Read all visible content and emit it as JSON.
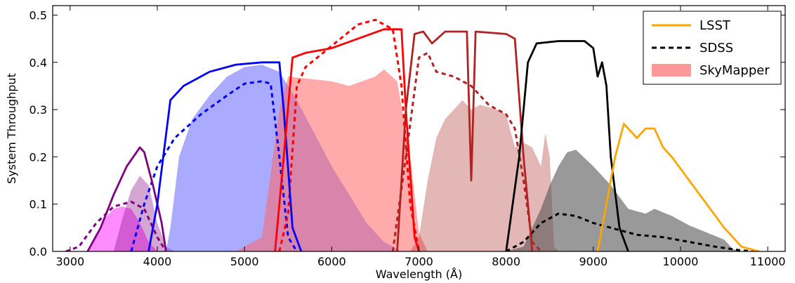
{
  "chart_data": {
    "type": "area",
    "title": "",
    "xlabel": "Wavelength (Å)",
    "ylabel": "System Throughput",
    "xlim": [
      2800,
      11200
    ],
    "ylim": [
      0.0,
      0.52
    ],
    "x_ticks": [
      "3000",
      "4000",
      "5000",
      "6000",
      "7000",
      "8000",
      "9000",
      "10000",
      "11000"
    ],
    "y_ticks": [
      "0.0",
      "0.1",
      "0.2",
      "0.3",
      "0.4",
      "0.5"
    ],
    "grid": false,
    "legend_position": "top-right",
    "legend": [
      {
        "label": "LSST",
        "style": "solid-line",
        "color": "#ffa500"
      },
      {
        "label": "SDSS",
        "style": "dashed-line",
        "color": "#000000"
      },
      {
        "label": "SkyMapper",
        "style": "filled-area",
        "color": "#ff9999"
      }
    ],
    "series": [
      {
        "survey": "SkyMapper",
        "kind": "area",
        "color": "#ff00ff",
        "opacity": 0.45,
        "points": [
          [
            3200,
            0
          ],
          [
            3300,
            0.03
          ],
          [
            3400,
            0.07
          ],
          [
            3500,
            0.09
          ],
          [
            3600,
            0.095
          ],
          [
            3700,
            0.09
          ],
          [
            3800,
            0.06
          ],
          [
            3900,
            0.02
          ],
          [
            4000,
            0
          ]
        ]
      },
      {
        "survey": "SkyMapper",
        "kind": "area",
        "color": "#800080",
        "opacity": 0.35,
        "points": [
          [
            3500,
            0
          ],
          [
            3600,
            0.07
          ],
          [
            3700,
            0.13
          ],
          [
            3800,
            0.16
          ],
          [
            3900,
            0.14
          ],
          [
            4000,
            0.06
          ],
          [
            4100,
            0.01
          ],
          [
            4200,
            0
          ]
        ]
      },
      {
        "survey": "SkyMapper",
        "kind": "area",
        "color": "#5555ff",
        "opacity": 0.5,
        "points": [
          [
            4100,
            0
          ],
          [
            4150,
            0.05
          ],
          [
            4250,
            0.2
          ],
          [
            4400,
            0.28
          ],
          [
            4600,
            0.33
          ],
          [
            4800,
            0.37
          ],
          [
            5000,
            0.39
          ],
          [
            5200,
            0.395
          ],
          [
            5400,
            0.38
          ],
          [
            5600,
            0.32
          ],
          [
            5800,
            0.25
          ],
          [
            6000,
            0.18
          ],
          [
            6200,
            0.12
          ],
          [
            6400,
            0.06
          ],
          [
            6600,
            0.02
          ],
          [
            6800,
            0
          ]
        ]
      },
      {
        "survey": "SkyMapper",
        "kind": "area",
        "color": "#ff6666",
        "opacity": 0.55,
        "points": [
          [
            4900,
            0
          ],
          [
            5200,
            0.03
          ],
          [
            5400,
            0.3
          ],
          [
            5500,
            0.37
          ],
          [
            6000,
            0.36
          ],
          [
            6200,
            0.35
          ],
          [
            6500,
            0.37
          ],
          [
            6600,
            0.385
          ],
          [
            6750,
            0.36
          ],
          [
            6900,
            0.2
          ],
          [
            7000,
            0.04
          ],
          [
            7100,
            0
          ]
        ]
      },
      {
        "survey": "SkyMapper",
        "kind": "area",
        "color": "#b23030",
        "opacity": 0.35,
        "points": [
          [
            6900,
            0
          ],
          [
            7000,
            0.03
          ],
          [
            7100,
            0.15
          ],
          [
            7200,
            0.24
          ],
          [
            7300,
            0.28
          ],
          [
            7400,
            0.3
          ],
          [
            7500,
            0.32
          ],
          [
            7600,
            0.3
          ],
          [
            7700,
            0.31
          ],
          [
            7900,
            0.3
          ],
          [
            8000,
            0.29
          ],
          [
            8100,
            0.22
          ],
          [
            8200,
            0.23
          ],
          [
            8300,
            0.22
          ],
          [
            8400,
            0.18
          ],
          [
            8450,
            0.25
          ],
          [
            8500,
            0.2
          ],
          [
            8550,
            0.01
          ],
          [
            8600,
            0
          ]
        ]
      },
      {
        "survey": "SkyMapper",
        "kind": "area",
        "color": "#555555",
        "opacity": 0.6,
        "points": [
          [
            8000,
            0
          ],
          [
            8200,
            0.01
          ],
          [
            8400,
            0.09
          ],
          [
            8500,
            0.14
          ],
          [
            8600,
            0.18
          ],
          [
            8700,
            0.21
          ],
          [
            8800,
            0.215
          ],
          [
            9000,
            0.18
          ],
          [
            9200,
            0.14
          ],
          [
            9400,
            0.09
          ],
          [
            9600,
            0.08
          ],
          [
            9700,
            0.09
          ],
          [
            9900,
            0.075
          ],
          [
            10100,
            0.055
          ],
          [
            10300,
            0.04
          ],
          [
            10500,
            0.025
          ],
          [
            10600,
            0.005
          ],
          [
            10700,
            0
          ]
        ]
      },
      {
        "survey": "SDSS",
        "kind": "dashed",
        "color": "#800080",
        "points": [
          [
            2950,
            0
          ],
          [
            3100,
            0.01
          ],
          [
            3300,
            0.06
          ],
          [
            3500,
            0.095
          ],
          [
            3700,
            0.105
          ],
          [
            3850,
            0.09
          ],
          [
            4000,
            0.03
          ],
          [
            4100,
            0
          ]
        ]
      },
      {
        "survey": "SDSS",
        "kind": "dashed",
        "color": "#0000ff",
        "points": [
          [
            3700,
            0
          ],
          [
            3850,
            0.1
          ],
          [
            4000,
            0.18
          ],
          [
            4200,
            0.24
          ],
          [
            4500,
            0.29
          ],
          [
            4800,
            0.33
          ],
          [
            5000,
            0.355
          ],
          [
            5200,
            0.36
          ],
          [
            5300,
            0.355
          ],
          [
            5400,
            0.2
          ],
          [
            5500,
            0.03
          ],
          [
            5600,
            0
          ]
        ]
      },
      {
        "survey": "SDSS",
        "kind": "dashed",
        "color": "#ff0000",
        "points": [
          [
            5400,
            0
          ],
          [
            5500,
            0.08
          ],
          [
            5600,
            0.35
          ],
          [
            5700,
            0.39
          ],
          [
            5900,
            0.42
          ],
          [
            6100,
            0.45
          ],
          [
            6300,
            0.48
          ],
          [
            6500,
            0.49
          ],
          [
            6700,
            0.47
          ],
          [
            6800,
            0.35
          ],
          [
            6900,
            0.1
          ],
          [
            7000,
            0
          ]
        ]
      },
      {
        "survey": "SDSS",
        "kind": "dashed",
        "color": "#b22222",
        "points": [
          [
            6700,
            0
          ],
          [
            6850,
            0.2
          ],
          [
            7000,
            0.41
          ],
          [
            7100,
            0.42
          ],
          [
            7200,
            0.38
          ],
          [
            7400,
            0.37
          ],
          [
            7600,
            0.35
          ],
          [
            7800,
            0.31
          ],
          [
            8000,
            0.29
          ],
          [
            8100,
            0.26
          ],
          [
            8200,
            0.15
          ],
          [
            8300,
            0.02
          ],
          [
            8400,
            0
          ]
        ]
      },
      {
        "survey": "SDSS",
        "kind": "dashed",
        "color": "#000000",
        "points": [
          [
            8000,
            0
          ],
          [
            8200,
            0.02
          ],
          [
            8400,
            0.06
          ],
          [
            8600,
            0.08
          ],
          [
            8800,
            0.075
          ],
          [
            9000,
            0.06
          ],
          [
            9200,
            0.05
          ],
          [
            9500,
            0.035
          ],
          [
            9800,
            0.03
          ],
          [
            10100,
            0.02
          ],
          [
            10400,
            0.01
          ],
          [
            10700,
            0.002
          ],
          [
            10900,
            0
          ]
        ]
      },
      {
        "survey": "LSST",
        "kind": "solid",
        "color": "#800080",
        "points": [
          [
            3200,
            0
          ],
          [
            3350,
            0.05
          ],
          [
            3500,
            0.12
          ],
          [
            3650,
            0.18
          ],
          [
            3800,
            0.22
          ],
          [
            3850,
            0.21
          ],
          [
            3950,
            0.14
          ],
          [
            4050,
            0.06
          ],
          [
            4100,
            0
          ]
        ]
      },
      {
        "survey": "LSST",
        "kind": "solid",
        "color": "#0000ff",
        "points": [
          [
            3900,
            0
          ],
          [
            4000,
            0.1
          ],
          [
            4150,
            0.32
          ],
          [
            4300,
            0.35
          ],
          [
            4600,
            0.38
          ],
          [
            4900,
            0.395
          ],
          [
            5200,
            0.4
          ],
          [
            5400,
            0.4
          ],
          [
            5450,
            0.3
          ],
          [
            5550,
            0.05
          ],
          [
            5650,
            0
          ]
        ]
      },
      {
        "survey": "LSST",
        "kind": "solid",
        "color": "#ff0000",
        "points": [
          [
            5350,
            0
          ],
          [
            5450,
            0.2
          ],
          [
            5550,
            0.41
          ],
          [
            5700,
            0.42
          ],
          [
            6000,
            0.43
          ],
          [
            6300,
            0.45
          ],
          [
            6600,
            0.47
          ],
          [
            6800,
            0.47
          ],
          [
            6850,
            0.3
          ],
          [
            6950,
            0.03
          ],
          [
            7000,
            0
          ]
        ]
      },
      {
        "survey": "LSST",
        "kind": "solid",
        "color": "#b22222",
        "points": [
          [
            6750,
            0
          ],
          [
            6850,
            0.3
          ],
          [
            6950,
            0.46
          ],
          [
            7050,
            0.465
          ],
          [
            7150,
            0.44
          ],
          [
            7300,
            0.465
          ],
          [
            7550,
            0.465
          ],
          [
            7600,
            0.15
          ],
          [
            7650,
            0.465
          ],
          [
            8000,
            0.46
          ],
          [
            8100,
            0.45
          ],
          [
            8200,
            0.2
          ],
          [
            8300,
            0
          ]
        ]
      },
      {
        "survey": "LSST",
        "kind": "solid",
        "color": "#000000",
        "points": [
          [
            8000,
            0
          ],
          [
            8150,
            0.2
          ],
          [
            8250,
            0.4
          ],
          [
            8350,
            0.44
          ],
          [
            8600,
            0.445
          ],
          [
            8900,
            0.445
          ],
          [
            9000,
            0.43
          ],
          [
            9050,
            0.37
          ],
          [
            9100,
            0.4
          ],
          [
            9150,
            0.35
          ],
          [
            9200,
            0.2
          ],
          [
            9300,
            0.05
          ],
          [
            9400,
            0
          ]
        ]
      },
      {
        "survey": "LSST",
        "kind": "solid",
        "color": "#ffa500",
        "points": [
          [
            9050,
            0
          ],
          [
            9150,
            0.1
          ],
          [
            9250,
            0.2
          ],
          [
            9350,
            0.27
          ],
          [
            9500,
            0.24
          ],
          [
            9600,
            0.26
          ],
          [
            9700,
            0.26
          ],
          [
            9800,
            0.22
          ],
          [
            9900,
            0.2
          ],
          [
            10100,
            0.15
          ],
          [
            10300,
            0.1
          ],
          [
            10500,
            0.05
          ],
          [
            10700,
            0.01
          ],
          [
            10900,
            0
          ]
        ]
      }
    ]
  }
}
